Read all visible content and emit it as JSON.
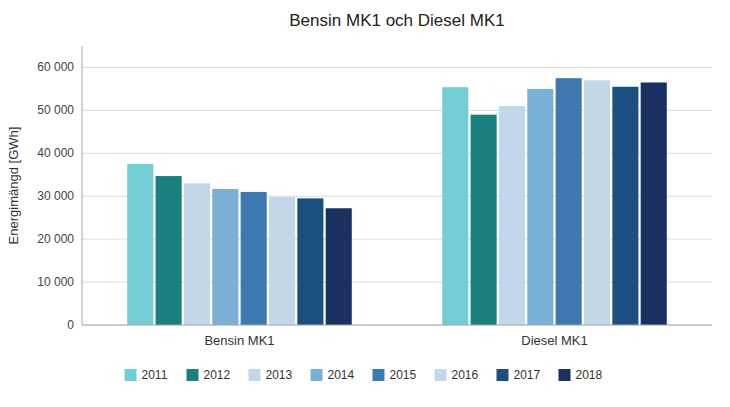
{
  "chart_data": {
    "type": "bar",
    "title": "Bensin MK1 och Diesel MK1",
    "ylabel": "Energimängd [GWh]",
    "categories": [
      "Bensin MK1",
      "Diesel MK1"
    ],
    "series": [
      {
        "name": "2011",
        "color": "#72cdd4",
        "values": [
          37500,
          55400
        ]
      },
      {
        "name": "2012",
        "color": "#1b7f7f",
        "values": [
          34700,
          49000
        ]
      },
      {
        "name": "2013",
        "color": "#c2d8ea",
        "values": [
          33000,
          51000
        ]
      },
      {
        "name": "2014",
        "color": "#7ab0d5",
        "values": [
          31700,
          55000
        ]
      },
      {
        "name": "2015",
        "color": "#3d78b0",
        "values": [
          31000,
          57500
        ]
      },
      {
        "name": "2016",
        "color": "#c2d8ea",
        "values": [
          29800,
          57000
        ]
      },
      {
        "name": "2017",
        "color": "#1a4f80",
        "values": [
          29500,
          55500
        ]
      },
      {
        "name": "2018",
        "color": "#1a3060",
        "values": [
          27200,
          56500
        ]
      }
    ],
    "ylim": [
      0,
      65000
    ],
    "yticks": [
      0,
      {
        "value": 10000,
        "label": "10 000"
      },
      {
        "value": 20000,
        "label": "20 000"
      },
      {
        "value": 30000,
        "label": "30 000"
      },
      {
        "value": 40000,
        "label": "40 000"
      },
      {
        "value": 50000,
        "label": "50 000"
      },
      {
        "value": 60000,
        "label": "60 000"
      }
    ],
    "grid": true,
    "legend": "bottom"
  }
}
